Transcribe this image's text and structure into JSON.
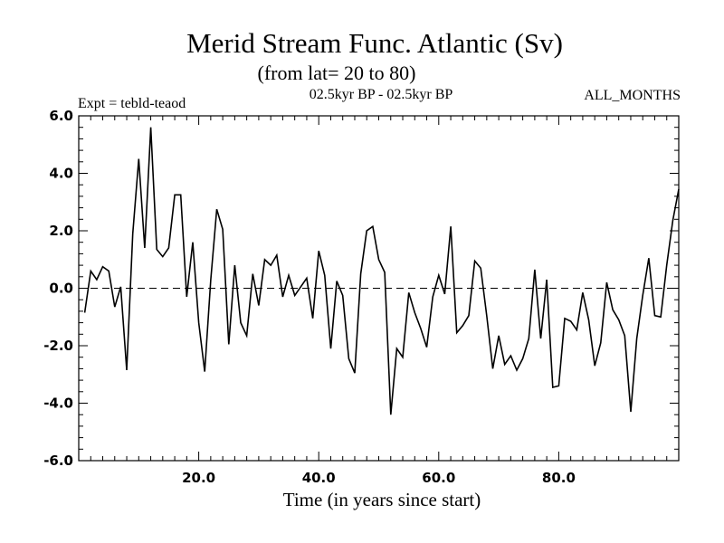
{
  "chart_data": {
    "type": "line",
    "title": "Merid Stream Func. Atlantic (Sv)",
    "subtitle": "(from lat= 20 to 80)",
    "experiment": "Expt = tebld-teaod",
    "period": "02.5kyr BP - 02.5kyr BP",
    "months": "ALL_MONTHS",
    "xlabel": "Time (in years since start)",
    "ylabel": "",
    "xlim": [
      0,
      100
    ],
    "ylim": [
      -6,
      6
    ],
    "xticks": [
      20,
      40,
      60,
      80
    ],
    "xtick_labels": [
      "20.0",
      "40.0",
      "60.0",
      "80.0"
    ],
    "yticks": [
      6,
      4,
      2,
      0,
      -2,
      -4,
      -6
    ],
    "ytick_labels": [
      "6.0",
      "4.0",
      "2.0",
      "0.0",
      "-2.0",
      "-4.0",
      "-6.0"
    ],
    "reference_line": 0,
    "x": [
      1,
      2,
      3,
      4,
      5,
      6,
      7,
      8,
      9,
      10,
      11,
      12,
      13,
      14,
      15,
      16,
      17,
      18,
      19,
      20,
      21,
      22,
      23,
      24,
      25,
      26,
      27,
      28,
      29,
      30,
      31,
      32,
      33,
      34,
      35,
      36,
      37,
      38,
      39,
      40,
      41,
      42,
      43,
      44,
      45,
      46,
      47,
      48,
      49,
      50,
      51,
      52,
      53,
      54,
      55,
      56,
      57,
      58,
      59,
      60,
      61,
      62,
      63,
      64,
      65,
      66,
      67,
      68,
      69,
      70,
      71,
      72,
      73,
      74,
      75,
      76,
      77,
      78,
      79,
      80,
      81,
      82,
      83,
      84,
      85,
      86,
      87,
      88,
      89,
      90,
      91,
      92,
      93,
      94,
      95,
      96,
      97,
      98,
      99,
      100
    ],
    "series": [
      {
        "name": "Merid Stream Func. Atlantic",
        "values": [
          -0.85,
          0.6,
          0.3,
          0.75,
          0.6,
          -0.65,
          0.05,
          -2.85,
          1.9,
          4.5,
          1.4,
          5.6,
          1.35,
          1.1,
          1.4,
          3.25,
          3.25,
          -0.3,
          1.6,
          -1.2,
          -2.9,
          0.3,
          2.75,
          2.05,
          -1.95,
          0.8,
          -1.2,
          -1.65,
          0.5,
          -0.6,
          1.0,
          0.8,
          1.15,
          -0.3,
          0.45,
          -0.25,
          0.05,
          0.35,
          -1.05,
          1.3,
          0.45,
          -2.1,
          0.25,
          -0.25,
          -2.45,
          -2.95,
          0.5,
          2.0,
          2.15,
          1.0,
          0.55,
          -4.4,
          -2.1,
          -2.4,
          -0.15,
          -0.85,
          -1.4,
          -2.05,
          -0.3,
          0.45,
          -0.2,
          2.15,
          -1.55,
          -1.3,
          -0.95,
          0.95,
          0.7,
          -0.95,
          -2.8,
          -1.65,
          -2.65,
          -2.35,
          -2.85,
          -2.45,
          -1.75,
          0.65,
          -1.75,
          0.3,
          -3.45,
          -3.4,
          -1.05,
          -1.15,
          -1.45,
          -0.15,
          -1.1,
          -2.7,
          -1.9,
          0.2,
          -0.75,
          -1.1,
          -1.65,
          -4.3,
          -1.75,
          -0.25,
          1.05,
          -0.95,
          -1.0,
          0.8,
          2.35,
          3.45
        ]
      }
    ]
  }
}
